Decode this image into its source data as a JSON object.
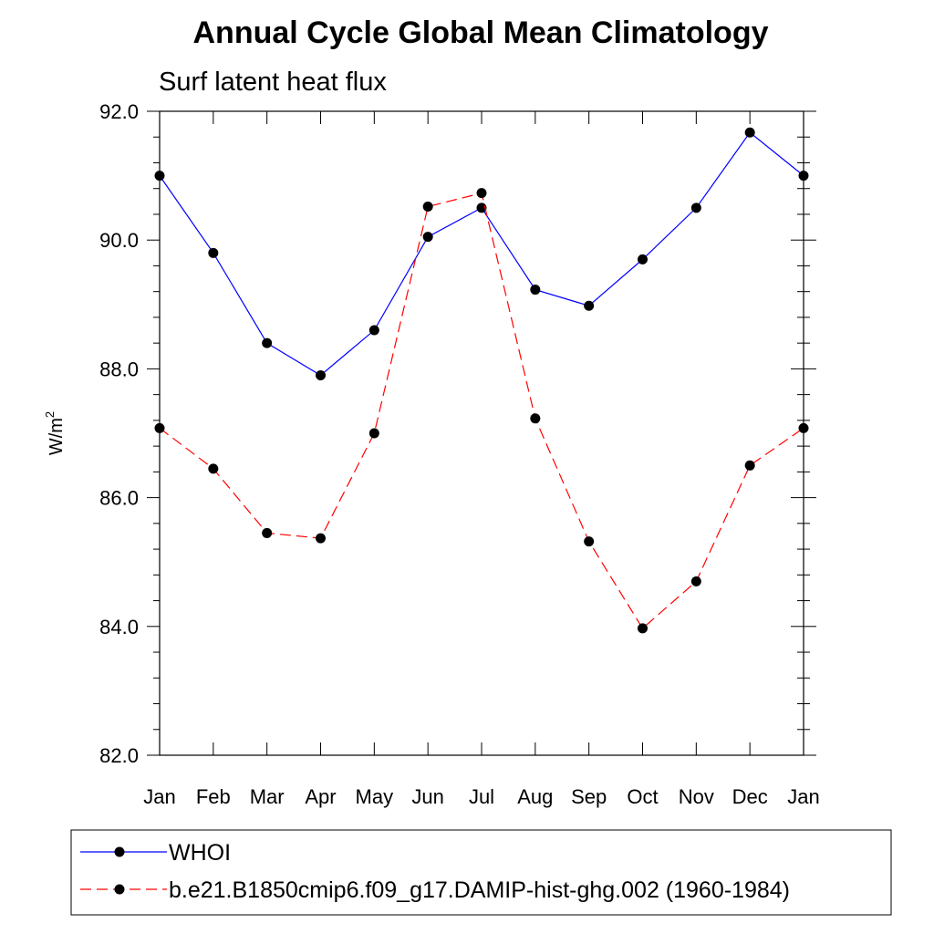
{
  "chart_data": {
    "type": "line",
    "title": "Annual Cycle Global Mean Climatology",
    "subtitle": "Surf latent heat flux",
    "ylabel": "W/m",
    "ylabel_superscript": "2",
    "xlabel": "",
    "categories": [
      "Jan",
      "Feb",
      "Mar",
      "Apr",
      "May",
      "Jun",
      "Jul",
      "Aug",
      "Sep",
      "Oct",
      "Nov",
      "Dec",
      "Jan"
    ],
    "ylim": [
      82.0,
      92.0
    ],
    "yticks": [
      "82.0",
      "84.0",
      "86.0",
      "88.0",
      "90.0",
      "92.0"
    ],
    "grid": false,
    "legend_position": "bottom",
    "series": [
      {
        "name": "WHOI",
        "color": "#0000ff",
        "line_style": "solid",
        "marker": "filled-circle",
        "values": [
          91.0,
          89.8,
          88.4,
          87.9,
          88.6,
          90.05,
          90.5,
          89.23,
          88.98,
          89.7,
          90.5,
          91.67,
          91.0
        ]
      },
      {
        "name": "b.e21.B1850cmip6.f09_g17.DAMIP-hist-ghg.002 (1960-1984)",
        "color": "#ff0000",
        "line_style": "dashed",
        "marker": "filled-circle",
        "values": [
          87.08,
          86.45,
          85.45,
          85.37,
          87.0,
          90.52,
          90.73,
          87.23,
          85.32,
          83.97,
          84.7,
          86.5,
          87.08
        ]
      }
    ]
  }
}
